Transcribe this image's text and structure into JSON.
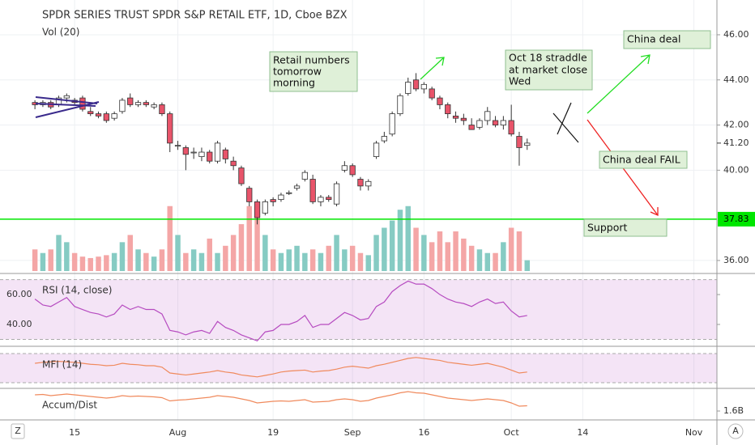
{
  "chart_data": {
    "type": "candlestick",
    "title": "SPDR SERIES TRUST SPDR S&P RETAIL ETF, 1D, Cboe BZX",
    "volume_label": "Vol (20)",
    "xlim": [
      -4.4,
      85.9
    ],
    "xticks": [
      {
        "value": 5,
        "label": "15"
      },
      {
        "value": 18,
        "label": "Aug"
      },
      {
        "value": 30,
        "label": "19"
      },
      {
        "value": 40,
        "label": "Sep"
      },
      {
        "value": 49,
        "label": "16"
      },
      {
        "value": 60,
        "label": "Oct"
      },
      {
        "value": 69,
        "label": "14"
      },
      {
        "value": 83,
        "label": "Nov"
      }
    ],
    "ylim": [
      35.46,
      47.54
    ],
    "yticks": [
      {
        "value": 36,
        "label": "36.00"
      },
      {
        "value": 40,
        "label": "40.00"
      },
      {
        "value": 42,
        "label": "42.00"
      },
      {
        "value": 44,
        "label": "44.00"
      },
      {
        "value": 46,
        "label": "46.00"
      }
    ],
    "last_price": {
      "value": 41.2,
      "label": "41.20"
    },
    "support": {
      "value": 37.83,
      "label": "37.83",
      "color": "#00e600"
    },
    "up_color": "#ffffff",
    "down_color": "#e8546a",
    "open": [
      43.0,
      42.9,
      43.0,
      42.9,
      43.2,
      43.1,
      43.2,
      42.6,
      42.5,
      42.5,
      42.3,
      42.6,
      43.2,
      42.9,
      43.0,
      42.8,
      42.9,
      42.5,
      41.1,
      41.0,
      40.8,
      40.6,
      40.8,
      40.4,
      40.9,
      40.4,
      40.1,
      39.2,
      38.6,
      38.1,
      38.7,
      38.7,
      39.0,
      39.2,
      39.6,
      39.6,
      38.6,
      38.8,
      38.5,
      40.0,
      40.2,
      39.6,
      39.3,
      40.6,
      41.3,
      41.6,
      42.5,
      43.4,
      44.0,
      43.6,
      43.6,
      43.2,
      42.9,
      42.4,
      42.3,
      42.0,
      41.9,
      42.2,
      42.2,
      42.0,
      42.2,
      41.5,
      41.1
    ],
    "high": [
      43.1,
      43.1,
      43.1,
      43.3,
      43.4,
      43.2,
      43.3,
      42.8,
      42.6,
      42.6,
      42.6,
      43.2,
      43.4,
      43.1,
      43.1,
      43.0,
      43.0,
      42.6,
      41.3,
      41.1,
      41.0,
      41.0,
      40.9,
      41.3,
      41.0,
      40.6,
      40.2,
      39.3,
      38.7,
      38.7,
      38.8,
      39.0,
      39.1,
      39.4,
      40.0,
      39.8,
      38.9,
      38.9,
      39.5,
      40.4,
      40.3,
      39.7,
      39.6,
      41.3,
      41.7,
      42.6,
      43.4,
      44.1,
      44.3,
      43.9,
      43.7,
      43.3,
      43.0,
      42.6,
      42.5,
      42.3,
      42.3,
      42.8,
      42.4,
      42.4,
      42.9,
      41.7,
      41.4
    ],
    "low": [
      42.7,
      42.8,
      42.7,
      42.8,
      43.0,
      42.9,
      42.6,
      42.4,
      42.3,
      42.1,
      42.2,
      42.5,
      42.8,
      42.8,
      42.8,
      42.7,
      42.4,
      40.8,
      40.9,
      40.0,
      40.5,
      40.4,
      40.3,
      40.3,
      40.3,
      40.0,
      39.3,
      38.4,
      37.6,
      38.0,
      38.4,
      38.6,
      38.9,
      39.1,
      39.5,
      38.5,
      38.4,
      38.6,
      38.4,
      39.9,
      39.7,
      39.1,
      39.1,
      40.5,
      41.2,
      41.5,
      42.4,
      43.3,
      43.5,
      43.4,
      43.1,
      42.7,
      42.3,
      42.1,
      42.0,
      41.8,
      41.8,
      42.0,
      41.9,
      41.8,
      41.5,
      40.2,
      40.9
    ],
    "close": [
      42.9,
      43.0,
      42.8,
      43.2,
      43.3,
      43.0,
      42.7,
      42.5,
      42.4,
      42.2,
      42.5,
      43.1,
      42.9,
      43.0,
      42.9,
      42.9,
      42.5,
      41.2,
      41.1,
      40.7,
      40.8,
      40.8,
      40.4,
      41.2,
      40.5,
      40.2,
      39.4,
      38.6,
      37.9,
      38.6,
      38.6,
      38.9,
      39.0,
      39.3,
      39.9,
      38.6,
      38.8,
      38.7,
      39.4,
      40.2,
      39.8,
      39.3,
      39.5,
      41.2,
      41.5,
      42.5,
      43.3,
      43.9,
      43.6,
      43.8,
      43.2,
      42.9,
      42.5,
      42.3,
      42.2,
      41.8,
      42.2,
      42.6,
      42.0,
      42.2,
      41.6,
      41.0,
      41.2
    ],
    "vol_ylim": [
      0,
      12
    ],
    "vol_colors": [
      "#86cbc3",
      "#f4a6a6"
    ],
    "volume": [
      3,
      2.5,
      3,
      5,
      4,
      2.5,
      2,
      1.8,
      2,
      2.2,
      2.5,
      4,
      5,
      3,
      2.5,
      2,
      3,
      9,
      5,
      2.5,
      3,
      2.5,
      4.5,
      2.5,
      3.5,
      5,
      6.5,
      9,
      8,
      5,
      3,
      2.5,
      3,
      3.5,
      2.5,
      3,
      2.5,
      3.5,
      5,
      3,
      3.5,
      2.5,
      2.2,
      5,
      6,
      7,
      8.5,
      9,
      6,
      5,
      4,
      5.5,
      4,
      5.5,
      4.5,
      3.5,
      3,
      2.5,
      2.5,
      4,
      6,
      5.5,
      1.5
    ],
    "rsi": {
      "label": "RSI (14, close)",
      "color": "#b64bc0",
      "ylim": [
        27,
        71.4
      ],
      "bands": [
        30,
        70
      ],
      "yticks": [
        {
          "value": 40,
          "label": "40.00"
        },
        {
          "value": 60,
          "label": "60.00"
        }
      ],
      "values": [
        57,
        53,
        52,
        55,
        58,
        52,
        50,
        48,
        47,
        45,
        47,
        53,
        50,
        52,
        50,
        50,
        47,
        36,
        35,
        33,
        35,
        36,
        34,
        42,
        38,
        36,
        33,
        31,
        29,
        35,
        36,
        40,
        40,
        42,
        46,
        38,
        40,
        40,
        44,
        48,
        46,
        43,
        44,
        52,
        55,
        62,
        66,
        69,
        67,
        67,
        64,
        60,
        57,
        55,
        54,
        52,
        55,
        57,
        54,
        55,
        49,
        45,
        46
      ]
    },
    "mfi": {
      "label": "MFI (14)",
      "color": "#f08a5d",
      "ylim": [
        11.7,
        91.7
      ],
      "bands": [
        20,
        80
      ],
      "values": [
        60,
        62,
        63,
        64,
        63,
        62,
        60,
        58,
        57,
        55,
        56,
        60,
        58,
        57,
        55,
        55,
        52,
        40,
        38,
        36,
        38,
        40,
        42,
        45,
        42,
        40,
        36,
        34,
        32,
        35,
        38,
        42,
        44,
        45,
        46,
        42,
        44,
        45,
        48,
        52,
        54,
        52,
        50,
        55,
        58,
        62,
        66,
        70,
        72,
        70,
        68,
        66,
        62,
        60,
        58,
        56,
        58,
        60,
        56,
        52,
        46,
        40,
        42
      ]
    },
    "ad": {
      "label": "Accum/Dist",
      "color": "#f08a5d",
      "ylim": [
        1.58,
        1.652
      ],
      "yticks": [
        {
          "value": 1.6,
          "label": "1.6B"
        }
      ],
      "values": [
        1.64,
        1.641,
        1.638,
        1.64,
        1.642,
        1.64,
        1.638,
        1.636,
        1.634,
        1.632,
        1.634,
        1.638,
        1.636,
        1.637,
        1.636,
        1.635,
        1.633,
        1.625,
        1.627,
        1.628,
        1.63,
        1.632,
        1.634,
        1.638,
        1.636,
        1.634,
        1.63,
        1.626,
        1.62,
        1.622,
        1.624,
        1.625,
        1.624,
        1.626,
        1.628,
        1.622,
        1.623,
        1.624,
        1.628,
        1.63,
        1.628,
        1.624,
        1.626,
        1.632,
        1.636,
        1.64,
        1.645,
        1.648,
        1.645,
        1.644,
        1.64,
        1.636,
        1.632,
        1.63,
        1.628,
        1.626,
        1.628,
        1.63,
        1.628,
        1.626,
        1.62,
        1.612,
        1.613
      ]
    },
    "annotations": {
      "retail": [
        "Retail numbers",
        "tomorrow",
        "morning"
      ],
      "straddle": [
        "Oct 18 straddle",
        "at market close",
        "Wed"
      ],
      "deal": "China deal",
      "fail": "China deal FAIL",
      "support": "Support"
    },
    "corner_left": "Z",
    "corner_right": "A"
  }
}
